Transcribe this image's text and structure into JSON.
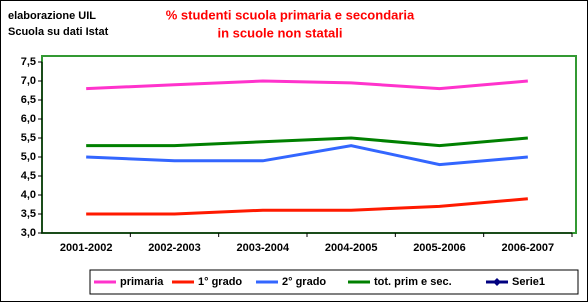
{
  "chart_data": {
    "type": "line",
    "title_lines": [
      "% studenti scuola primaria e secondaria",
      "in scuole non statali"
    ],
    "note_lines": [
      "elaborazione UIL",
      "Scuola su dati Istat"
    ],
    "categories": [
      "2001-2002",
      "2002-2003",
      "2003-2004",
      "2004-2005",
      "2005-2006",
      "2006-2007"
    ],
    "series": [
      {
        "name": "primaria",
        "color": "#ff33cc",
        "values": [
          6.8,
          6.9,
          7.0,
          6.95,
          6.8,
          7.0
        ]
      },
      {
        "name": "1° grado",
        "color": "#ff1a00",
        "values": [
          3.5,
          3.5,
          3.6,
          3.6,
          3.7,
          3.9
        ]
      },
      {
        "name": "2° grado",
        "color": "#3366ff",
        "values": [
          5.0,
          4.9,
          4.9,
          5.3,
          4.8,
          5.0
        ]
      },
      {
        "name": "tot. prim e sec.",
        "color": "#008000",
        "values": [
          5.3,
          5.3,
          5.4,
          5.5,
          5.3,
          5.5
        ]
      },
      {
        "name": "Serie1",
        "color": "#000080",
        "marker": "diamond",
        "values": [
          null,
          null,
          null,
          null,
          null,
          null
        ]
      }
    ],
    "ylim": [
      3.0,
      7.5
    ],
    "yticks": [
      {
        "value": 3.0,
        "label": "3,0"
      },
      {
        "value": 3.5,
        "label": "3,5"
      },
      {
        "value": 4.0,
        "label": "4,0"
      },
      {
        "value": 4.5,
        "label": "4,5"
      },
      {
        "value": 5.0,
        "label": "5,0"
      },
      {
        "value": 5.5,
        "label": "5,5"
      },
      {
        "value": 6.0,
        "label": "6,0"
      },
      {
        "value": 6.5,
        "label": "6,5"
      },
      {
        "value": 7.0,
        "label": "7,0"
      },
      {
        "value": 7.5,
        "label": "7,5"
      }
    ],
    "grid": false,
    "legend": "bottom"
  }
}
